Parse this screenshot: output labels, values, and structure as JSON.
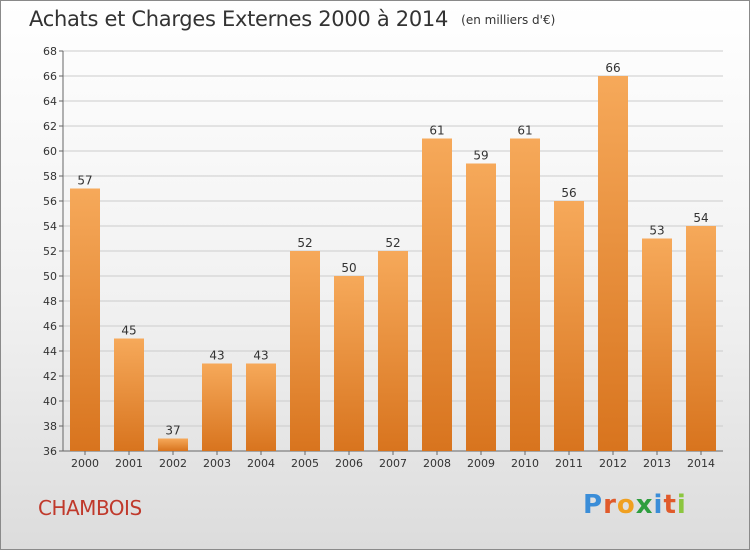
{
  "title": "Achats et Charges Externes 2000 à 2014",
  "unit_note": "(en milliers d'€)",
  "commune": "CHAMBOIS",
  "logo": {
    "letters": [
      "P",
      "r",
      "o",
      "x",
      "i",
      "t",
      "i"
    ],
    "colors": [
      "#3a8dd8",
      "#e05a2b",
      "#f0a020",
      "#2e9e3e",
      "#3a8dd8",
      "#e05a2b",
      "#8cc63f"
    ]
  },
  "colors": {
    "bar_top": "#f6a95a",
    "bar_bottom": "#d8741e",
    "grid": "#cccccc"
  },
  "chart_data": {
    "type": "bar",
    "categories": [
      "2000",
      "2001",
      "2002",
      "2003",
      "2004",
      "2005",
      "2006",
      "2007",
      "2008",
      "2009",
      "2010",
      "2011",
      "2012",
      "2013",
      "2014"
    ],
    "values": [
      57,
      45,
      37,
      43,
      43,
      52,
      50,
      52,
      61,
      59,
      61,
      56,
      66,
      53,
      54
    ],
    "ylim": [
      36,
      68
    ],
    "yticks": [
      36,
      38,
      40,
      42,
      44,
      46,
      48,
      50,
      52,
      54,
      56,
      58,
      60,
      62,
      64,
      66,
      68
    ],
    "grid": true
  }
}
